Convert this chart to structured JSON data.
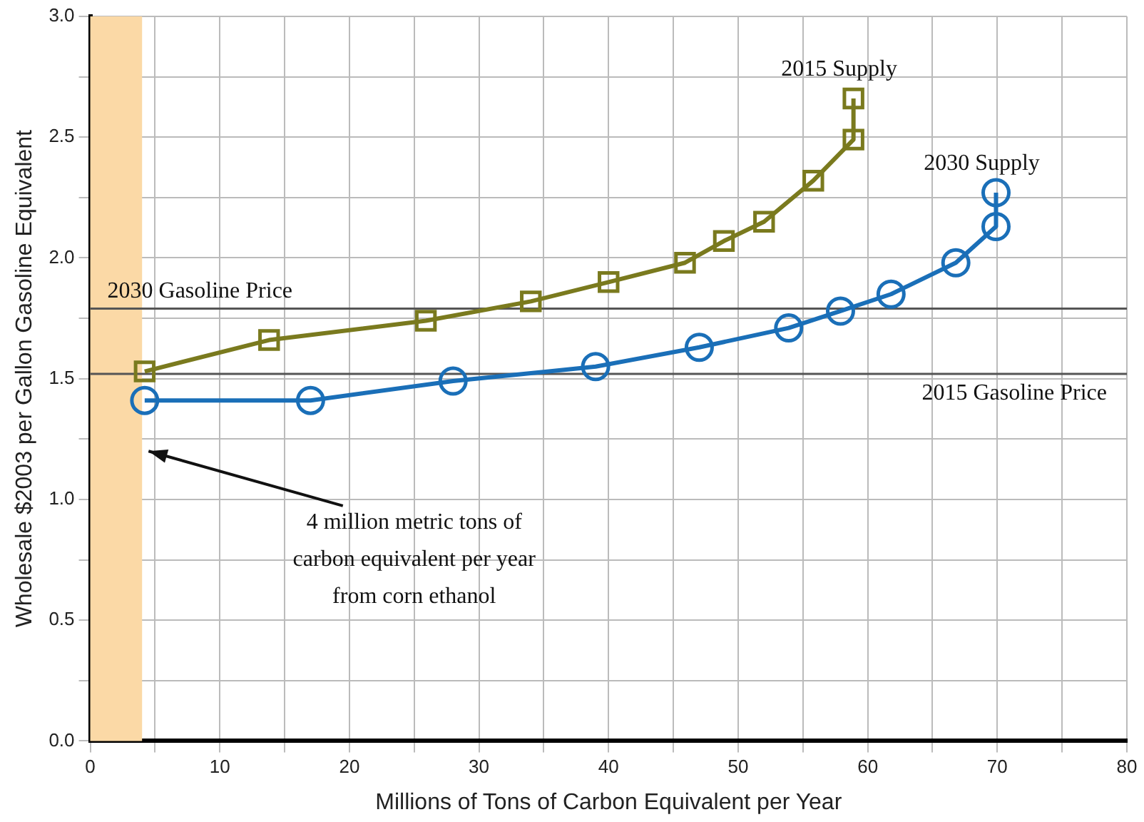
{
  "chart_data": {
    "type": "line",
    "xlabel": "Millions of Tons of Carbon Equivalent per Year",
    "ylabel": "Wholesale $2003 per Gallon Gasoline Equivalent",
    "xlim": [
      0,
      80
    ],
    "xticks": [
      0,
      {
        "value": 5,
        "label": null
      },
      10,
      {
        "value": 15,
        "label": null
      },
      20,
      {
        "value": 25,
        "label": null
      },
      30,
      {
        "value": 35,
        "label": null
      },
      40,
      {
        "value": 45,
        "label": null
      },
      50,
      {
        "value": 55,
        "label": null
      },
      60,
      {
        "value": 65,
        "label": null
      },
      70,
      {
        "value": 75,
        "label": null
      },
      80
    ],
    "ylim": [
      0,
      3
    ],
    "yticks": [
      "0.0",
      {
        "value": 0.25,
        "label": null
      },
      {
        "value": 0.5,
        "label": "0.5"
      },
      {
        "value": 0.75,
        "label": null
      },
      {
        "value": 1,
        "label": "1.0"
      },
      {
        "value": 1.25,
        "label": null
      },
      {
        "value": 1.5,
        "label": "1.5"
      },
      {
        "value": 1.75,
        "label": null
      },
      {
        "value": 2,
        "label": "2.0"
      },
      {
        "value": 2.25,
        "label": null
      },
      {
        "value": 2.5,
        "label": "2.5"
      },
      {
        "value": 2.75,
        "label": null
      },
      {
        "value": 3,
        "label": "3.0"
      }
    ],
    "grid": true,
    "legend": false,
    "line_style": "solid",
    "series": [
      {
        "name": "2015 Supply",
        "color": "#7a7a1e",
        "marker": "square",
        "x": [
          4.2,
          13.8,
          25.9,
          34,
          40,
          45.9,
          48.9,
          52,
          55.8,
          58.9,
          58.9
        ],
        "values": [
          1.53,
          1.66,
          1.74,
          1.82,
          1.9,
          1.98,
          2.07,
          2.15,
          2.32,
          2.49,
          2.66
        ]
      },
      {
        "name": "2030 Supply",
        "color": "#1a6fb8",
        "marker": "circle",
        "x": [
          4.2,
          17,
          28,
          39,
          47,
          53.9,
          57.9,
          61.8,
          66.8,
          69.9,
          69.9
        ],
        "values": [
          1.41,
          1.41,
          1.49,
          1.55,
          1.63,
          1.71,
          1.78,
          1.85,
          1.98,
          2.13,
          2.27
        ]
      }
    ],
    "ref_lines": [
      {
        "axis": "y",
        "value": 1.79,
        "label": "2030 Gasoline Price",
        "color": "#555555"
      },
      {
        "axis": "y",
        "value": 1.52,
        "label": "2015 Gasoline Price",
        "color": "#555555"
      }
    ],
    "bands": [
      {
        "axis": "x",
        "from": 0,
        "to": 4,
        "color": "#fbd9a6"
      }
    ],
    "annotations": [
      {
        "text": "4 million metric tons of carbon equivalent per year from corn ethanol",
        "x": 4.5,
        "y": 1.2
      }
    ]
  }
}
